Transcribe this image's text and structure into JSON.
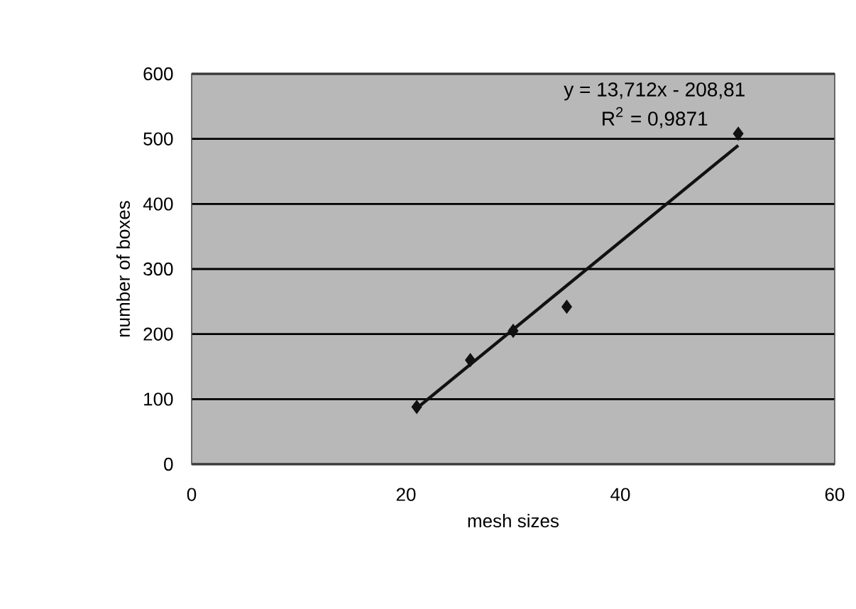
{
  "chart_data": {
    "type": "scatter",
    "xlabel": "mesh sizes",
    "ylabel": "number of boxes",
    "xlim": [
      0,
      60
    ],
    "xticks": [
      0,
      20,
      40,
      60
    ],
    "ylim": [
      0,
      600
    ],
    "yticks": [
      0,
      100,
      200,
      300,
      400,
      500,
      600
    ],
    "grid": "y",
    "marker": "diamond",
    "series": [
      {
        "color": "#111111",
        "x": [
          21,
          26,
          30,
          35,
          51
        ],
        "values": [
          88,
          160,
          205,
          242,
          508
        ]
      },
      {
        "type": "line",
        "color": "#111111",
        "marker": "none",
        "line_style": "solid",
        "x": [
          21,
          51
        ],
        "values": [
          86,
          490
        ]
      }
    ],
    "annotations": [
      "y = 13,712x - 208,81",
      "R$^{2}$ = 0,9871"
    ]
  }
}
